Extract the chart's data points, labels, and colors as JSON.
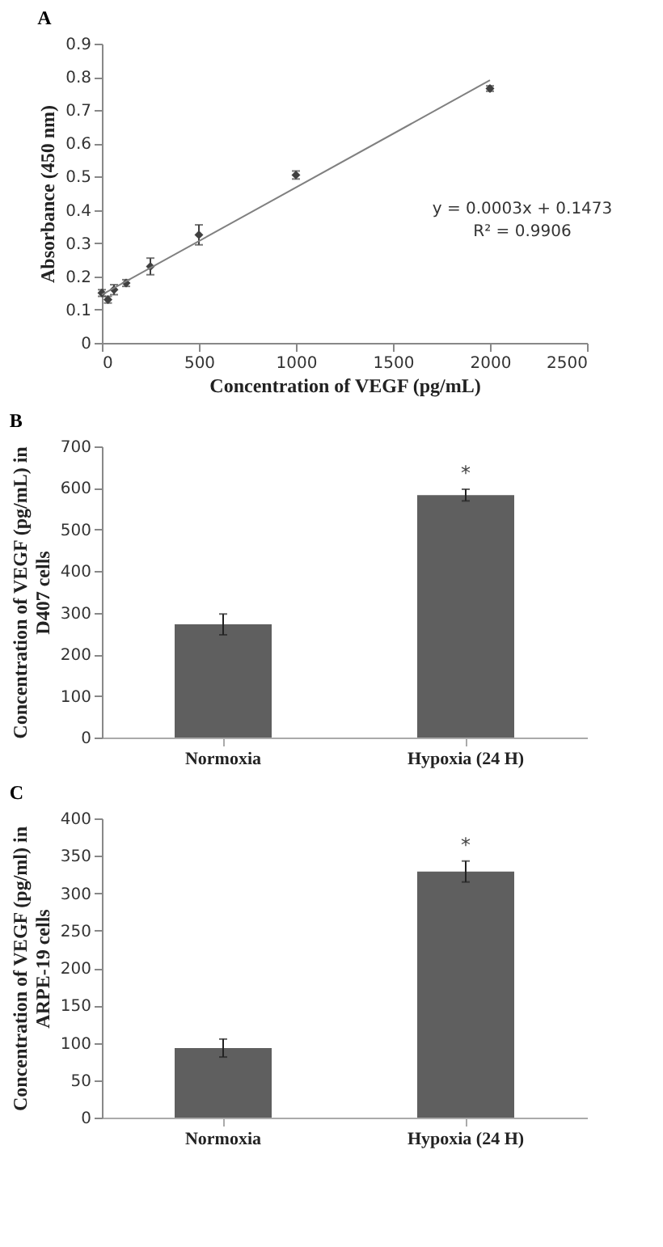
{
  "chart_data": [
    {
      "type": "scatter",
      "title": "A",
      "xlabel": "Concentration of VEGF (pg/mL)",
      "ylabel": "Absorbance (450 nm)",
      "xlim": [
        0,
        2500
      ],
      "xticks": [
        0,
        500,
        1000,
        1500,
        2000,
        2500
      ],
      "ylim": [
        0,
        0.9
      ],
      "yticks": [
        0,
        0.1,
        0.2,
        0.3,
        0.4,
        0.5,
        0.6,
        0.7,
        0.8,
        0.9
      ],
      "grid": false,
      "marker": "diamond",
      "series": [
        {
          "type": "scatter",
          "color": "#404040",
          "x": [
            0,
            31.25,
            62.5,
            125,
            250,
            500,
            1000,
            2000
          ],
          "values": [
            0.15,
            0.13,
            0.16,
            0.18,
            0.23,
            0.325,
            0.505,
            0.765
          ],
          "errors": [
            0.01,
            0.01,
            0.015,
            0.01,
            0.025,
            0.03,
            0.012,
            0.008
          ]
        },
        {
          "type": "line",
          "color": "#808080",
          "marker": "none",
          "x": [
            0,
            2000
          ],
          "values": [
            0.145,
            0.79
          ]
        }
      ],
      "annotations": [
        "y = 0.0003x + 0.1473",
        "R² = 0.9906"
      ]
    },
    {
      "type": "bar",
      "title": "B",
      "categories": [
        "Normoxia",
        "Hypoxia (24 H)"
      ],
      "values": [
        272,
        583
      ],
      "errors": [
        25,
        14
      ],
      "color": "#5f5f5f",
      "ylabel": "Concentration of VEGF (pg/mL) in D407 cells",
      "ylim": [
        0,
        700
      ],
      "yticks": [
        0,
        100,
        200,
        300,
        400,
        500,
        600,
        700
      ],
      "grid": false,
      "annotations": [
        "*"
      ]
    },
    {
      "type": "bar",
      "title": "C",
      "categories": [
        "Normoxia",
        "Hypoxia (24 H)"
      ],
      "values": [
        93,
        329
      ],
      "errors": [
        12,
        14
      ],
      "color": "#5f5f5f",
      "ylabel": "Concentration of VEGF (pg/ml) in ARPE-19 cells",
      "ylim": [
        0,
        400
      ],
      "yticks": [
        0,
        50,
        100,
        150,
        200,
        250,
        300,
        350,
        400
      ],
      "grid": false,
      "annotations": [
        "*"
      ]
    }
  ]
}
